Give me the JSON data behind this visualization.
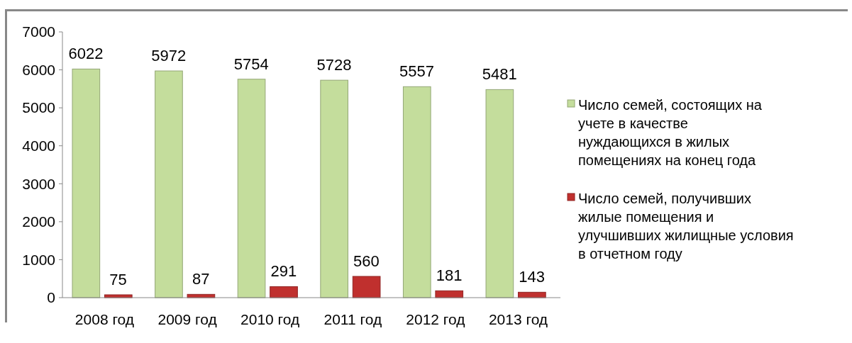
{
  "chart_data": {
    "type": "bar",
    "categories": [
      "2008 год",
      "2009 год",
      "2010 год",
      "2011 год",
      "2012 год",
      "2013 год"
    ],
    "series": [
      {
        "name": "Число семей, состоящих на учете в качестве нуждающихся в жилых помещениях на конец года",
        "color": "#c4dd9c",
        "values": [
          6022,
          5972,
          5754,
          5728,
          5557,
          5481
        ]
      },
      {
        "name": "Число семей, получивших жилые помещения и улучшивших жилищные условия в отчетном году",
        "color": "#c0302e",
        "values": [
          75,
          87,
          291,
          560,
          181,
          143
        ]
      }
    ],
    "ylim": [
      0,
      7000
    ],
    "yticks": [
      0,
      1000,
      2000,
      3000,
      4000,
      5000,
      6000,
      7000
    ],
    "data_labels": true,
    "legend": "right",
    "grid": false
  }
}
